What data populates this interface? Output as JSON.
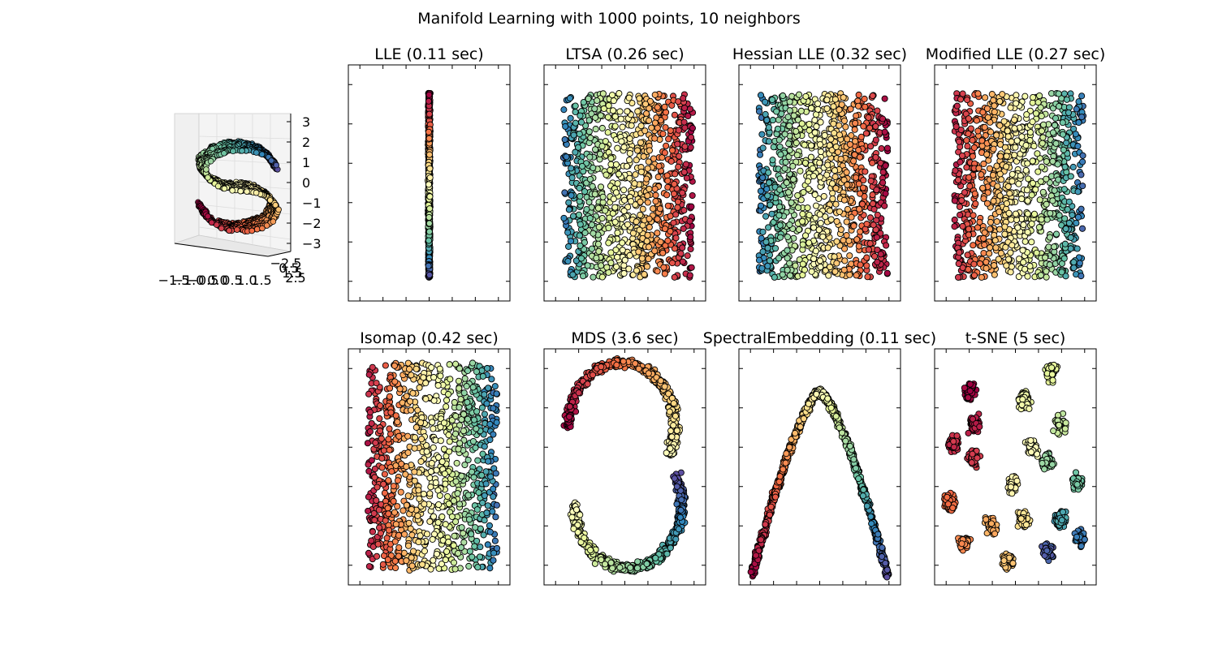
{
  "figure": {
    "title": "Manifold Learning with 1000 points, 10 neighbors"
  },
  "colormap": [
    "#9e0142",
    "#d53e4f",
    "#f46d43",
    "#fdae61",
    "#fee08b",
    "#ffffbf",
    "#e6f598",
    "#abdda4",
    "#66c2a5",
    "#3288bd",
    "#5e4fa2"
  ],
  "chart_data": [
    {
      "type": "scatter3d",
      "title": "",
      "manifold": "s-curve",
      "n_points": 1000,
      "z_ticks": [
        "3",
        "2",
        "1",
        "0",
        "−1",
        "−2",
        "−3"
      ],
      "x_ticks": [
        "−1.5",
        "−1.0",
        "−0.5",
        "0.0",
        "0.5",
        "1.0",
        "1.5"
      ],
      "y_ticks": [
        "−2.5",
        "0.5",
        "1.5",
        "2.5"
      ],
      "zlim": [
        -3,
        3
      ]
    },
    {
      "type": "scatter",
      "title": "LLE (0.11 sec)",
      "embedding": "line",
      "n_points": 1000
    },
    {
      "type": "scatter",
      "title": "LTSA (0.26 sec)",
      "embedding": "rect",
      "gradient": "horizontal",
      "n_points": 1000
    },
    {
      "type": "scatter",
      "title": "Hessian LLE (0.32 sec)",
      "embedding": "rect",
      "gradient": "horizontal",
      "n_points": 1000
    },
    {
      "type": "scatter",
      "title": "Modified LLE (0.27 sec)",
      "embedding": "rect",
      "gradient": "horizontal-reversed",
      "n_points": 1000
    },
    {
      "type": "scatter",
      "title": "Isomap (0.42 sec)",
      "embedding": "rect-sparse",
      "gradient": "horizontal-reversed",
      "n_points": 1000
    },
    {
      "type": "scatter",
      "title": "MDS (3.6 sec)",
      "embedding": "s-curve-2d",
      "n_points": 1000
    },
    {
      "type": "scatter",
      "title": "SpectralEmbedding (0.11 sec)",
      "embedding": "arch",
      "n_points": 1000
    },
    {
      "type": "scatter",
      "title": "t-SNE (5 sec)",
      "embedding": "clusters",
      "n_points": 1000
    }
  ]
}
